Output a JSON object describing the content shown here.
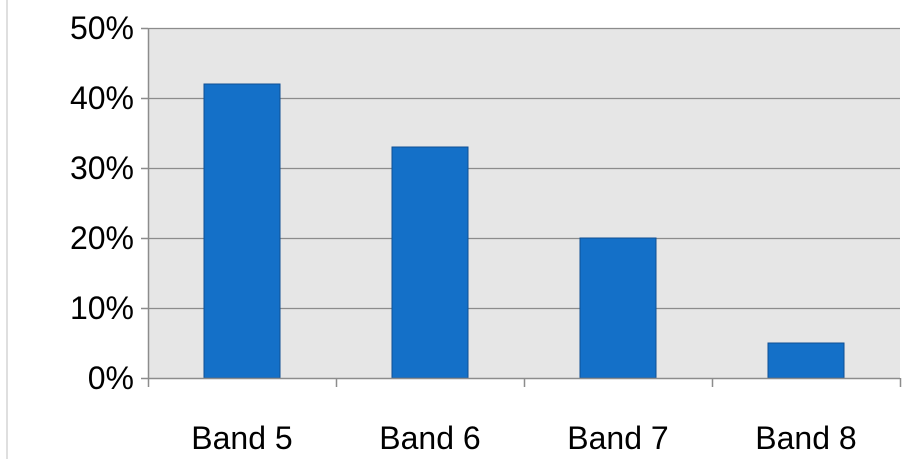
{
  "chart_data": {
    "type": "bar",
    "title": "",
    "xlabel": "",
    "ylabel": "",
    "categories": [
      "Band 5",
      "Band 6",
      "Band 7",
      "Band 8"
    ],
    "values": [
      42,
      33,
      20,
      5
    ],
    "value_unit": "percent",
    "ylim": [
      0,
      50
    ],
    "yticks": [
      0,
      10,
      20,
      30,
      40,
      50
    ],
    "ytick_labels": [
      "0%",
      "10%",
      "20%",
      "30%",
      "40%",
      "50%"
    ],
    "grid": true,
    "legend": "none",
    "colors": {
      "bar_fill": "#1470c8",
      "bar_stroke": "#0e4f94",
      "plot_background": "#e6e6e6",
      "gridline": "#8c8c8c",
      "axis": "#8c8c8c"
    }
  }
}
